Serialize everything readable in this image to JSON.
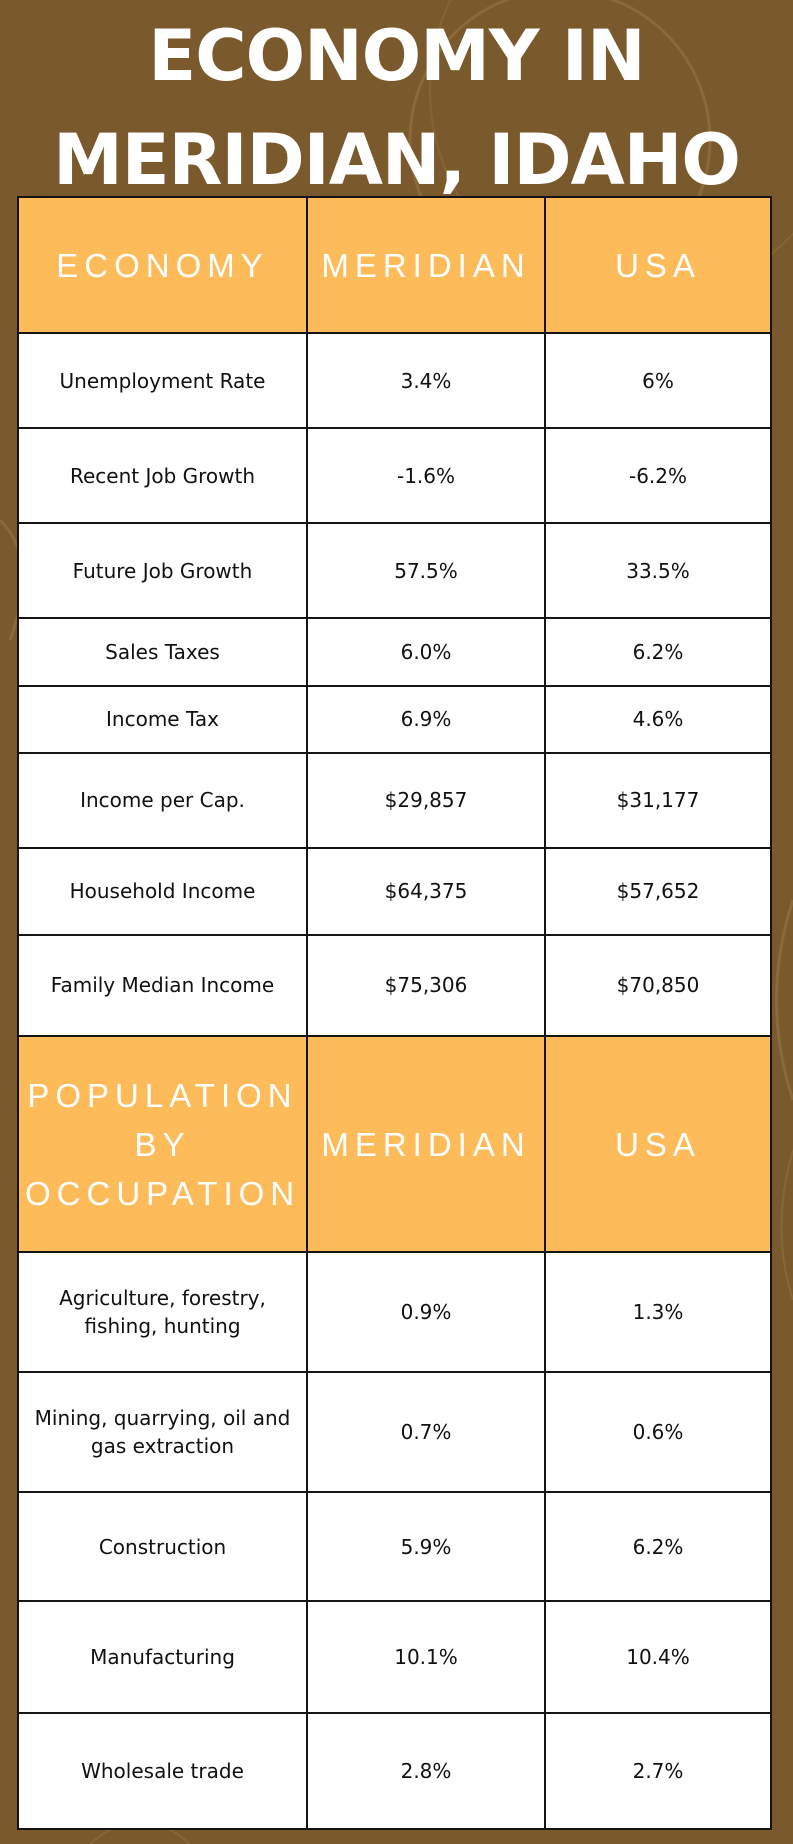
{
  "title": {
    "line1": "ECONOMY IN",
    "line2": "MERIDIAN, IDAHO"
  },
  "economy_table": {
    "headers": [
      "ECONOMY",
      "MERIDIAN",
      "USA"
    ],
    "rows": [
      [
        "Unemployment Rate",
        "3.4%",
        "6%"
      ],
      [
        "Recent Job Growth",
        "-1.6%",
        "-6.2%"
      ],
      [
        "Future Job Growth",
        "57.5%",
        "33.5%"
      ],
      [
        "Sales Taxes",
        "6.0%",
        "6.2%"
      ],
      [
        "Income Tax",
        "6.9%",
        "4.6%"
      ],
      [
        "Income per Cap.",
        "$29,857",
        "$31,177"
      ],
      [
        "Household Income",
        "$64,375",
        "$57,652"
      ],
      [
        "Family Median Income",
        "$75,306",
        "$70,850"
      ]
    ]
  },
  "occupation_table": {
    "headers": [
      "POPULATION BY OCCUPATION",
      "MERIDIAN",
      "USA"
    ],
    "rows": [
      [
        "Agriculture, forestry, fishing, hunting",
        "0.9%",
        "1.3%"
      ],
      [
        "Mining, quarrying, oil and gas extraction",
        "0.7%",
        "0.6%"
      ],
      [
        "Construction",
        "5.9%",
        "6.2%"
      ],
      [
        "Manufacturing",
        "10.1%",
        "10.4%"
      ],
      [
        "Wholesale trade",
        "2.8%",
        "2.7%"
      ]
    ]
  },
  "colors": {
    "background": "#7a5a2c",
    "header_fill": "#fdbb5a",
    "header_text": "#ffffff",
    "border": "#141414"
  }
}
